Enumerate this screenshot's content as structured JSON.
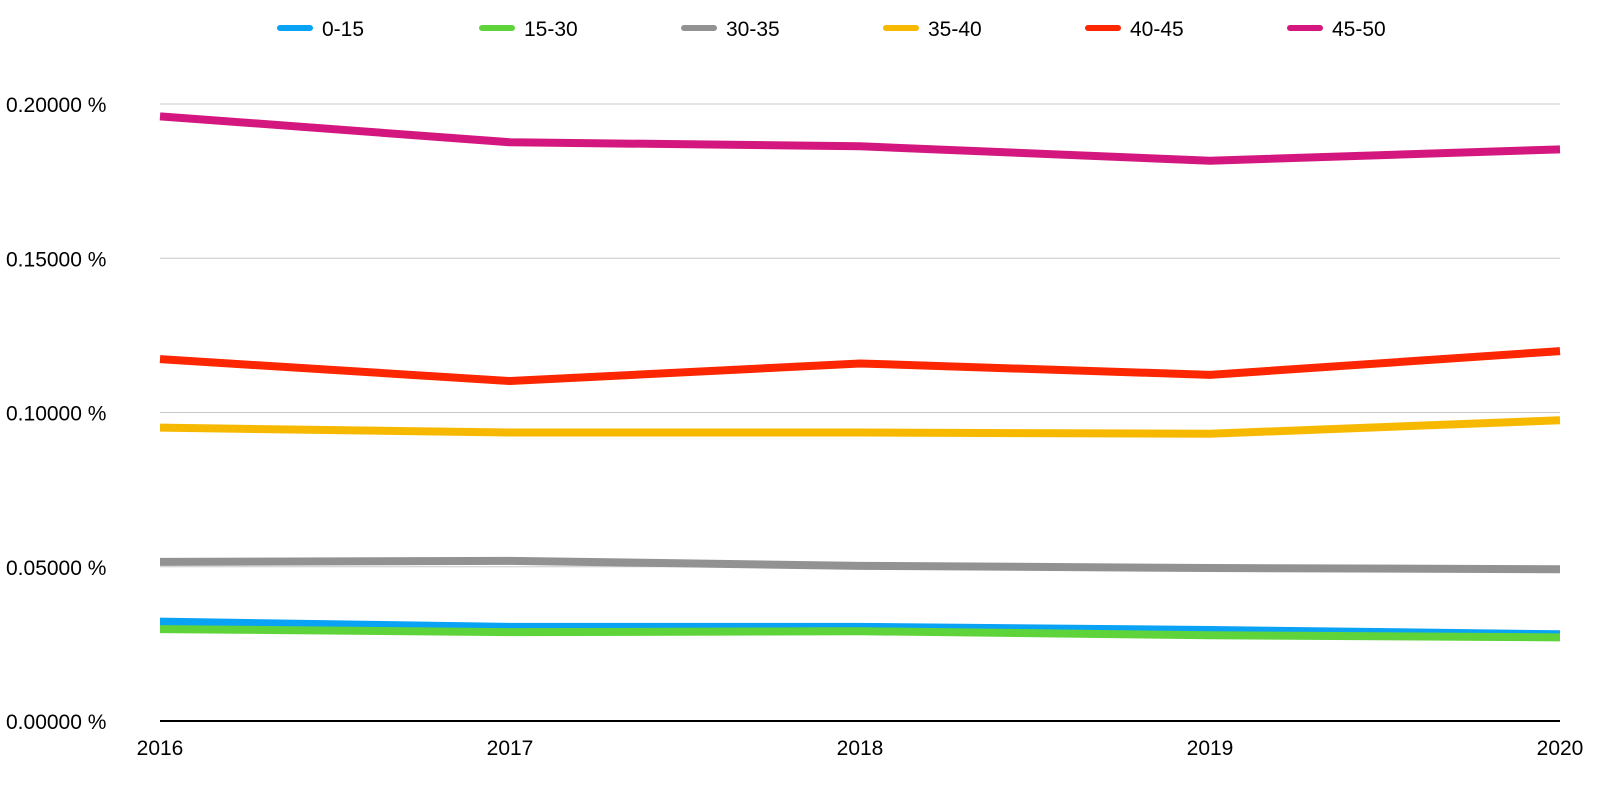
{
  "chart_data": {
    "type": "line",
    "title": "",
    "xlabel": "",
    "ylabel": "",
    "x": [
      "2016",
      "2017",
      "2018",
      "2019",
      "2020"
    ],
    "ylim": [
      0,
      0.2
    ],
    "yticks": [
      "0.00000 %",
      "0.05000 %",
      "0.10000 %",
      "0.15000 %",
      "0.20000 %"
    ],
    "ytick_values": [
      0,
      0.05,
      0.1,
      0.15,
      0.2
    ],
    "grid": true,
    "legend_position": "top",
    "series": [
      {
        "name": "0-15",
        "color": "#0aa2f5",
        "values": [
          0.0322,
          0.0305,
          0.0305,
          0.0295,
          0.0281
        ]
      },
      {
        "name": "15-30",
        "color": "#5fd43a",
        "values": [
          0.0298,
          0.0288,
          0.0291,
          0.0278,
          0.0271
        ]
      },
      {
        "name": "30-35",
        "color": "#929292",
        "values": [
          0.0516,
          0.0519,
          0.0503,
          0.0496,
          0.0492
        ]
      },
      {
        "name": "35-40",
        "color": "#f7b900",
        "values": [
          0.0951,
          0.0935,
          0.0935,
          0.0931,
          0.0975
        ]
      },
      {
        "name": "40-45",
        "color": "#fc2600",
        "values": [
          0.1173,
          0.1102,
          0.1159,
          0.1122,
          0.1199
        ]
      },
      {
        "name": "45-50",
        "color": "#d4177e",
        "values": [
          0.196,
          0.1876,
          0.1863,
          0.1816,
          0.1853
        ]
      }
    ]
  }
}
